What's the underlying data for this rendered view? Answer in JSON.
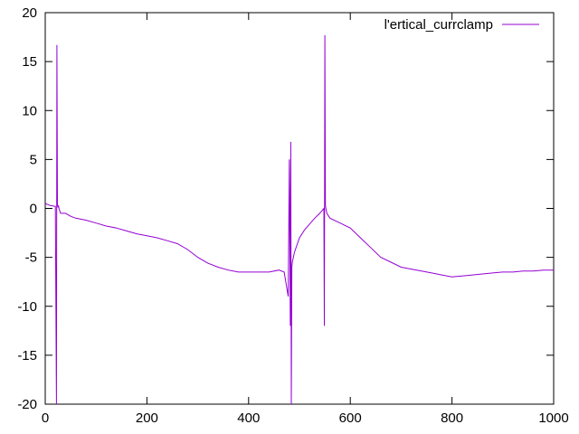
{
  "chart_data": {
    "type": "line",
    "title": "",
    "xlabel": "",
    "ylabel": "",
    "xlim": [
      0,
      1000
    ],
    "ylim": [
      -20,
      20
    ],
    "x_ticks": [
      "0",
      "200",
      "400",
      "600",
      "800",
      "1000"
    ],
    "y_ticks": [
      "20",
      "15",
      "10",
      "5",
      "0",
      "-5",
      "-10",
      "-15",
      "-20"
    ],
    "grid": false,
    "legend": "top-right",
    "series": [
      {
        "name": "l'ertical_currclamp",
        "color": "#9400d3",
        "x": [
          0,
          10,
          20,
          22,
          23,
          24,
          25,
          26,
          27,
          30,
          40,
          50,
          60,
          80,
          100,
          120,
          140,
          160,
          180,
          200,
          220,
          240,
          260,
          280,
          300,
          320,
          340,
          360,
          380,
          400,
          420,
          440,
          460,
          470,
          478,
          480,
          482,
          483,
          484,
          485,
          486,
          488,
          490,
          500,
          510,
          520,
          530,
          540,
          548,
          549,
          550,
          551,
          552,
          554,
          560,
          580,
          600,
          620,
          640,
          660,
          680,
          700,
          720,
          740,
          760,
          780,
          800,
          820,
          840,
          860,
          880,
          900,
          920,
          940,
          960,
          980,
          1000
        ],
        "y": [
          0.5,
          0.3,
          0.2,
          -20,
          16.7,
          0.5,
          0.1,
          0.3,
          0,
          -0.5,
          -0.5,
          -0.8,
          -1,
          -1.2,
          -1.5,
          -1.8,
          -2,
          -2.3,
          -2.6,
          -2.8,
          -3,
          -3.3,
          -3.6,
          -4.2,
          -5,
          -5.6,
          -6,
          -6.3,
          -6.5,
          -6.5,
          -6.5,
          -6.5,
          -6.3,
          -6.5,
          -9,
          5,
          -12,
          6.8,
          -20,
          -6,
          -5.5,
          -5,
          -4.5,
          -3,
          -2.2,
          -1.6,
          -1,
          -0.5,
          0,
          -12,
          17.7,
          0.3,
          0,
          -0.5,
          -1,
          -1.5,
          -2,
          -3,
          -4,
          -5,
          -5.5,
          -6,
          -6.2,
          -6.4,
          -6.6,
          -6.8,
          -7,
          -6.9,
          -6.8,
          -6.7,
          -6.6,
          -6.5,
          -6.5,
          -6.4,
          -6.4,
          -6.3,
          -6.3
        ]
      }
    ]
  }
}
